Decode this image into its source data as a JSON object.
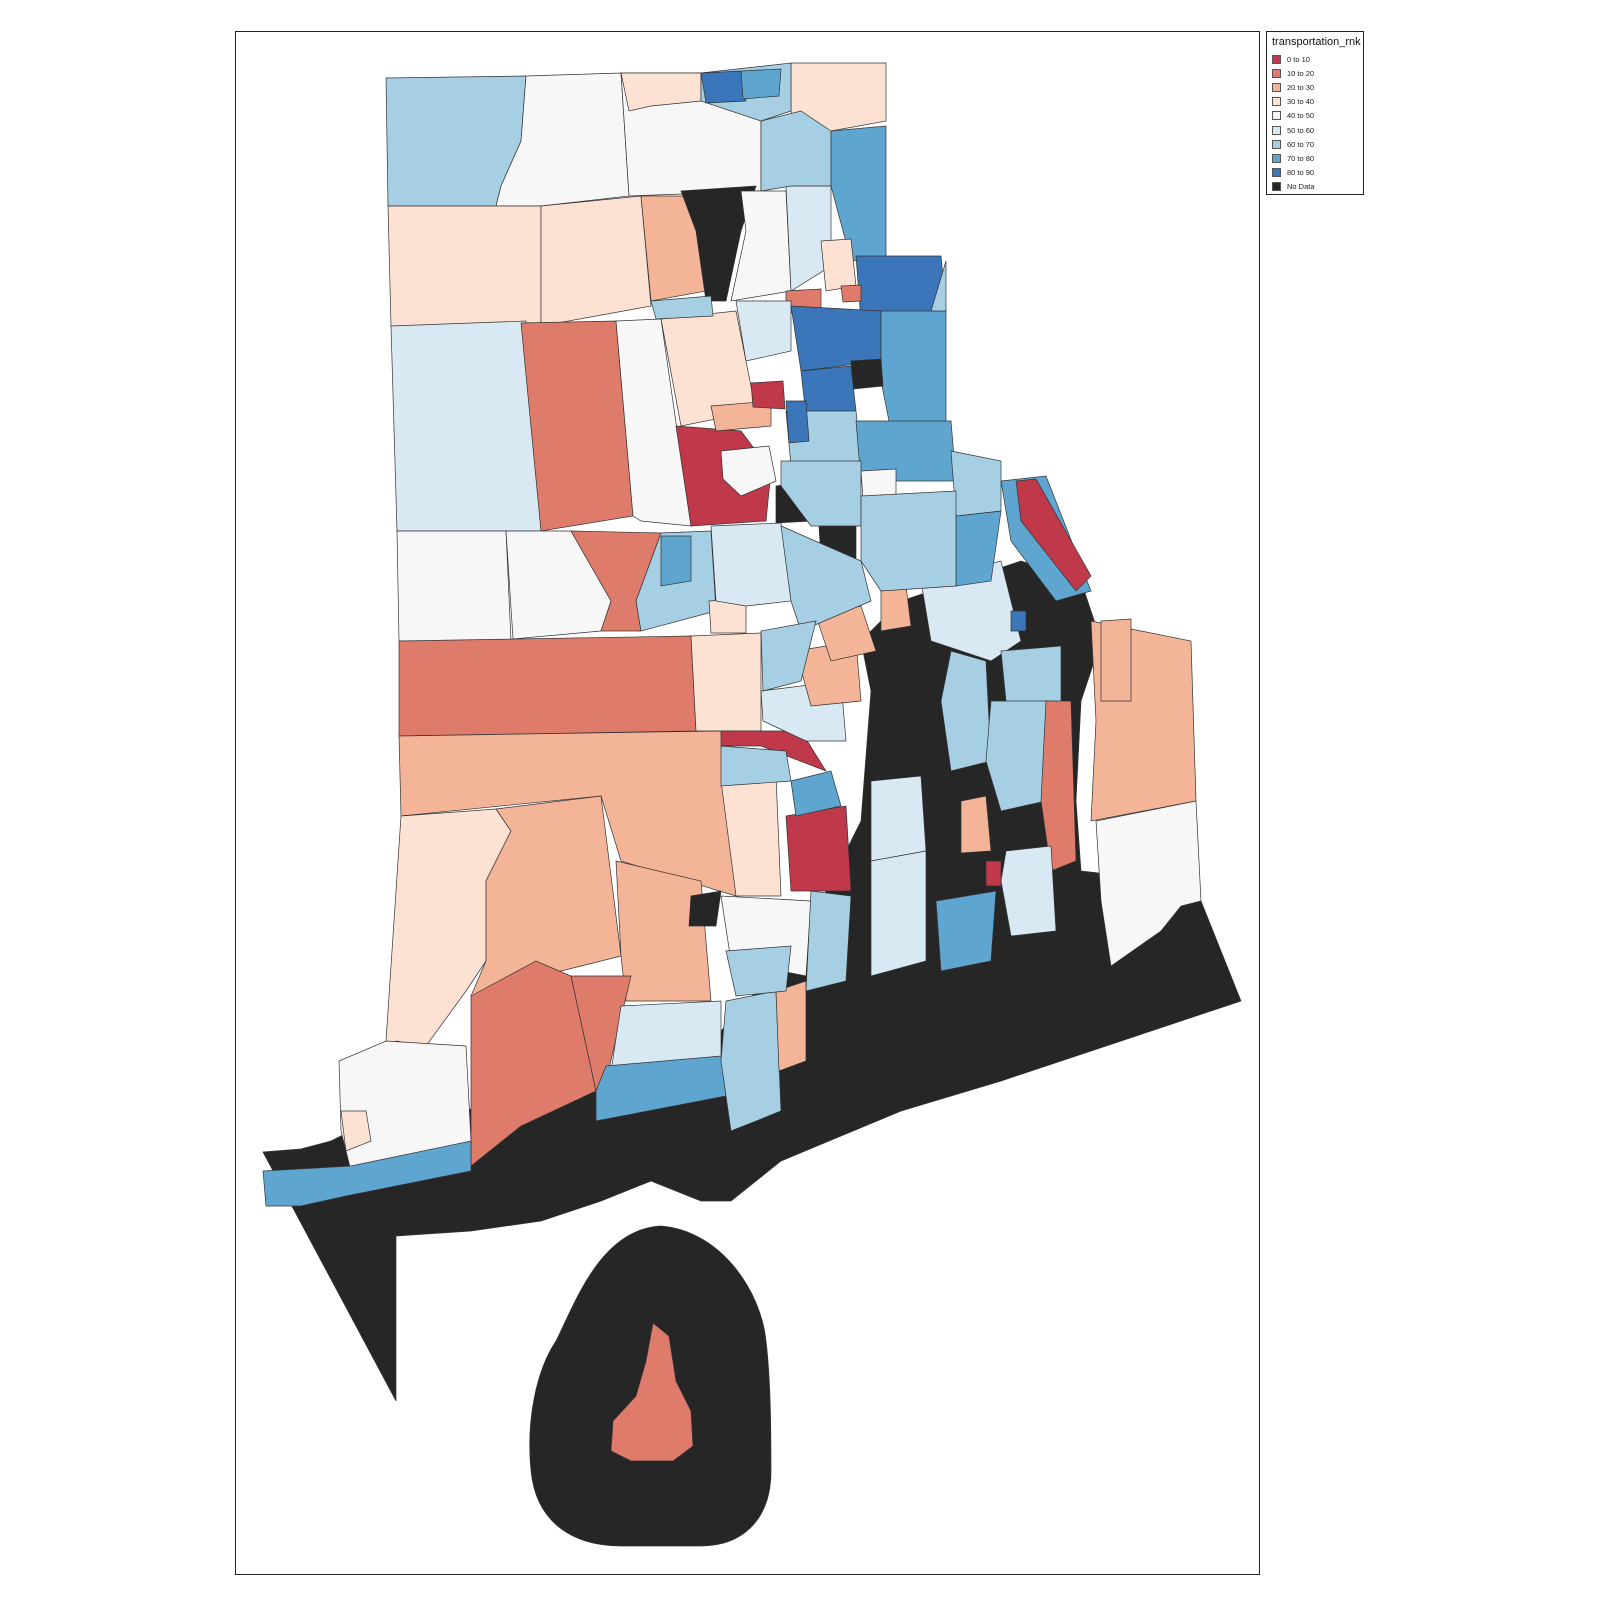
{
  "legend": {
    "title": "transportation_rnk",
    "items": [
      {
        "label": "0 to 10",
        "color": "#c0394b"
      },
      {
        "label": "10 to 20",
        "color": "#de7b6a"
      },
      {
        "label": "20 to 30",
        "color": "#f3b497"
      },
      {
        "label": "30 to 40",
        "color": "#fde2d4"
      },
      {
        "label": "40 to 50",
        "color": "#f7f7f7"
      },
      {
        "label": "50 to 60",
        "color": "#d9e9f3"
      },
      {
        "label": "60 to 70",
        "color": "#a6cfe4"
      },
      {
        "label": "70 to 80",
        "color": "#5ea5cf"
      },
      {
        "label": "80 to 90",
        "color": "#3a76b9"
      },
      {
        "label": "No Data",
        "color": "#262626"
      }
    ]
  },
  "map": {
    "variable": "transportation_rnk",
    "no_data_color": "#262626"
  }
}
